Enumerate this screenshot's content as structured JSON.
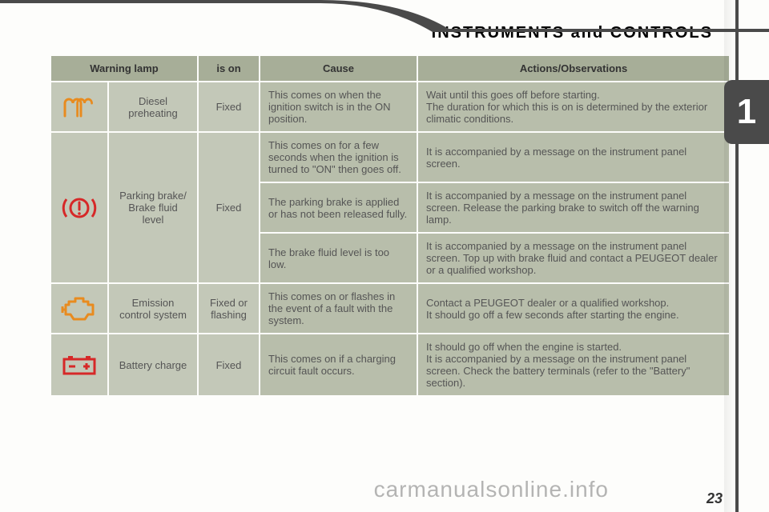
{
  "title": "INSTRUMENTS and CONTROLS",
  "side_tab": "1",
  "watermark": "carmanualsonline.info",
  "page_number": "23",
  "colors": {
    "header_bg": "#a7ae98",
    "cell_light": "#c3c8b8",
    "cell_mid": "#b8beab",
    "text": "#555",
    "icon_orange": "#e88b1f",
    "icon_red": "#d62828",
    "side_tab_bg": "#4a4a4a",
    "title_color": "#333"
  },
  "columns": [
    "Warning lamp",
    "is on",
    "Cause",
    "Actions/Observations"
  ],
  "rows": [
    {
      "icon": "preheat",
      "name": "Diesel preheating",
      "state": "Fixed",
      "cause": "This comes on when the ignition switch is in the ON position.",
      "action": "Wait until this goes off before starting.\nThe duration for which this is on is determined by the exterior climatic conditions."
    },
    {
      "icon": "brake",
      "name": "Parking brake/ Brake fluid level",
      "state": "Fixed",
      "sub": [
        {
          "cause": "This comes on for a few seconds when the ignition is turned to \"ON\" then goes off.",
          "action": "It is accompanied by a message on the instrument panel screen."
        },
        {
          "cause": "The parking brake is applied or has not been released fully.",
          "action": "It is accompanied by a message on the instrument panel screen. Release the parking brake to switch off the warning lamp."
        },
        {
          "cause": "The brake fluid level is too low.",
          "action": "It is accompanied by a message on the instrument panel screen. Top up with brake fluid and contact a PEUGEOT dealer or a qualified workshop."
        }
      ]
    },
    {
      "icon": "engine",
      "name": "Emission control system",
      "state": "Fixed or flashing",
      "cause": "This comes on or flashes in the event of a fault with the system.",
      "action": "Contact a PEUGEOT dealer or a qualified workshop.\nIt should go off a few seconds after starting the engine."
    },
    {
      "icon": "battery",
      "name": "Battery charge",
      "state": "Fixed",
      "cause": "This comes on if a charging circuit fault occurs.",
      "action": "It should go off when the engine is started.\nIt is accompanied by a message on the instrument panel screen. Check the battery terminals (refer to the \"Battery\" section)."
    }
  ]
}
